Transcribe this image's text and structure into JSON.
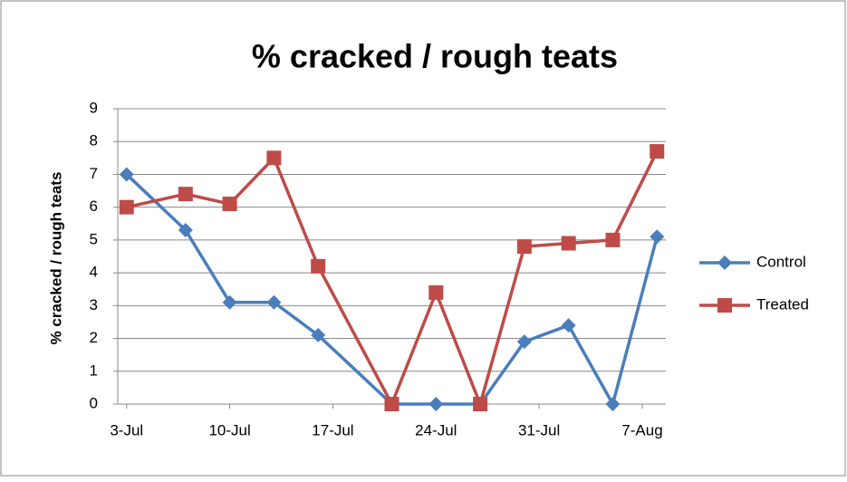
{
  "chart_data": {
    "type": "line",
    "title": "% cracked / rough teats",
    "y_label": "% cracked / rough teats",
    "x": [
      0,
      4,
      7,
      10,
      13,
      18,
      21,
      24,
      27,
      30,
      33,
      36
    ],
    "xlim": [
      -0.6,
      36.6
    ],
    "xticks": [
      {
        "value": 0,
        "label": "3-Jul"
      },
      {
        "value": 7,
        "label": "10-Jul"
      },
      {
        "value": 14,
        "label": "17-Jul"
      },
      {
        "value": 21,
        "label": "24-Jul"
      },
      {
        "value": 28,
        "label": "31-Jul"
      },
      {
        "value": 35,
        "label": "7-Aug"
      }
    ],
    "ylim": [
      0,
      9
    ],
    "yticks": [
      0,
      1,
      2,
      3,
      4,
      5,
      6,
      7,
      8,
      9
    ],
    "grid": true,
    "legend": "right",
    "series": [
      {
        "name": "Control",
        "color": "#4a7ebb",
        "marker": "diamond",
        "values": [
          7,
          5.3,
          3.1,
          3.1,
          2.1,
          0,
          0,
          0,
          1.9,
          2.4,
          0,
          5.1
        ]
      },
      {
        "name": "Treated",
        "color": "#be4b48",
        "marker": "square",
        "values": [
          6,
          6.4,
          6.1,
          7.5,
          4.2,
          0,
          3.4,
          0,
          4.8,
          4.9,
          5,
          7.7
        ]
      }
    ]
  }
}
